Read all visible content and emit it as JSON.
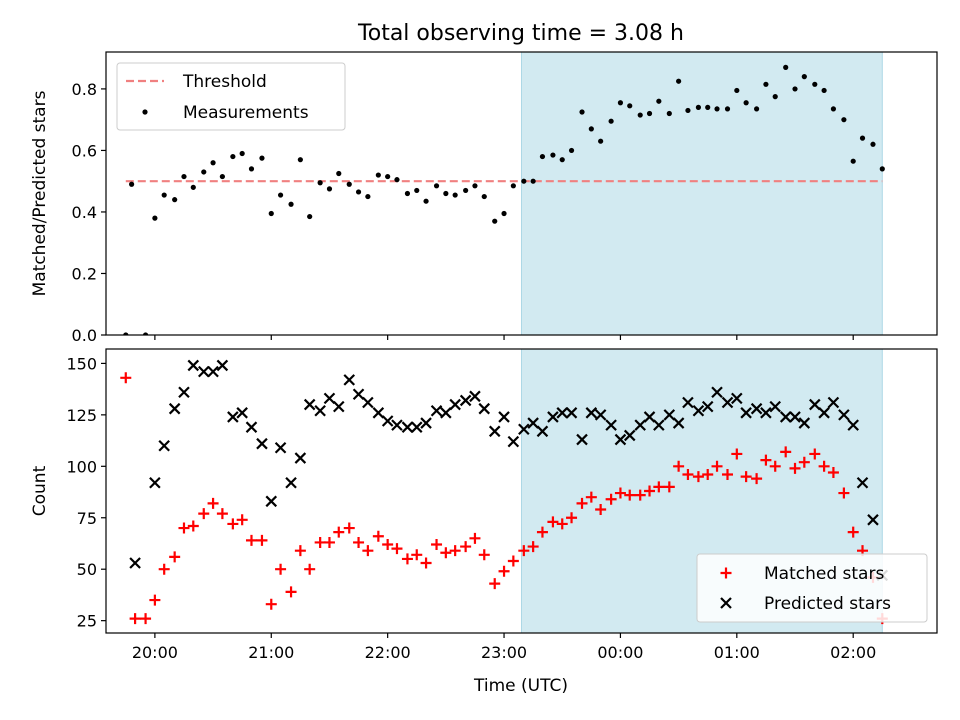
{
  "figure": {
    "title": "Total observing time = 3.08 h",
    "xlabel": "Time (UTC)",
    "shade_color": "#add8e6"
  },
  "chart_data": [
    {
      "type": "scatter",
      "title": "Total observing time = 3.08 h",
      "ylabel": "Matched/Predicted stars",
      "xlabel": "",
      "x_unit": "hours after 19:00 UTC (tick labels shown as clock times)",
      "xlim": [
        19.58,
        26.72
      ],
      "ylim": [
        0,
        0.92
      ],
      "yticks": [
        0.0,
        0.2,
        0.4,
        0.6,
        0.8
      ],
      "ytick_labels": [
        "0.0",
        "0.2",
        "0.4",
        "0.6",
        "0.8"
      ],
      "shaded_x": [
        23.15,
        26.25
      ],
      "threshold": {
        "name": "Threshold",
        "y": 0.5,
        "x_range": [
          19.75,
          26.25
        ],
        "color": "#f08080"
      },
      "legend": {
        "placement": "upper left",
        "entries": [
          "Threshold",
          "Measurements"
        ]
      },
      "series": [
        {
          "name": "Measurements",
          "color": "#000000",
          "marker": "dot",
          "points": [
            [
              19.75,
              0.0
            ],
            [
              19.8,
              0.49
            ],
            [
              19.92,
              0.0
            ],
            [
              20.0,
              0.38
            ],
            [
              20.08,
              0.455
            ],
            [
              20.17,
              0.44
            ],
            [
              20.25,
              0.515
            ],
            [
              20.33,
              0.48
            ],
            [
              20.42,
              0.53
            ],
            [
              20.5,
              0.56
            ],
            [
              20.58,
              0.515
            ],
            [
              20.67,
              0.58
            ],
            [
              20.75,
              0.59
            ],
            [
              20.83,
              0.54
            ],
            [
              20.92,
              0.575
            ],
            [
              21.0,
              0.395
            ],
            [
              21.08,
              0.455
            ],
            [
              21.17,
              0.425
            ],
            [
              21.25,
              0.57
            ],
            [
              21.33,
              0.385
            ],
            [
              21.42,
              0.495
            ],
            [
              21.5,
              0.475
            ],
            [
              21.58,
              0.525
            ],
            [
              21.67,
              0.49
            ],
            [
              21.75,
              0.465
            ],
            [
              21.83,
              0.45
            ],
            [
              21.92,
              0.52
            ],
            [
              22.0,
              0.515
            ],
            [
              22.08,
              0.505
            ],
            [
              22.17,
              0.46
            ],
            [
              22.25,
              0.47
            ],
            [
              22.33,
              0.435
            ],
            [
              22.42,
              0.485
            ],
            [
              22.5,
              0.46
            ],
            [
              22.58,
              0.455
            ],
            [
              22.67,
              0.47
            ],
            [
              22.75,
              0.485
            ],
            [
              22.83,
              0.45
            ],
            [
              22.92,
              0.37
            ],
            [
              23.0,
              0.395
            ],
            [
              23.08,
              0.485
            ],
            [
              23.17,
              0.5
            ],
            [
              23.25,
              0.5
            ],
            [
              23.33,
              0.58
            ],
            [
              23.42,
              0.585
            ],
            [
              23.5,
              0.57
            ],
            [
              23.58,
              0.6
            ],
            [
              23.67,
              0.725
            ],
            [
              23.75,
              0.67
            ],
            [
              23.83,
              0.63
            ],
            [
              23.92,
              0.695
            ],
            [
              24.0,
              0.755
            ],
            [
              24.08,
              0.745
            ],
            [
              24.17,
              0.715
            ],
            [
              24.25,
              0.72
            ],
            [
              24.33,
              0.76
            ],
            [
              24.42,
              0.72
            ],
            [
              24.5,
              0.825
            ],
            [
              24.58,
              0.73
            ],
            [
              24.67,
              0.74
            ],
            [
              24.75,
              0.74
            ],
            [
              24.83,
              0.735
            ],
            [
              24.92,
              0.735
            ],
            [
              25.0,
              0.795
            ],
            [
              25.08,
              0.755
            ],
            [
              25.17,
              0.735
            ],
            [
              25.25,
              0.815
            ],
            [
              25.33,
              0.775
            ],
            [
              25.42,
              0.87
            ],
            [
              25.5,
              0.8
            ],
            [
              25.58,
              0.84
            ],
            [
              25.67,
              0.815
            ],
            [
              25.75,
              0.795
            ],
            [
              25.83,
              0.735
            ],
            [
              25.92,
              0.7
            ],
            [
              26.0,
              0.565
            ],
            [
              26.08,
              0.64
            ],
            [
              26.17,
              0.62
            ],
            [
              26.25,
              0.54
            ]
          ]
        }
      ]
    },
    {
      "type": "scatter",
      "title": "",
      "ylabel": "Count",
      "xlabel": "Time (UTC)",
      "x_unit": "hours after 19:00 UTC (tick labels shown as clock times)",
      "xlim": [
        19.58,
        26.72
      ],
      "ylim": [
        19,
        157
      ],
      "xticks": [
        20,
        21,
        22,
        23,
        24,
        25,
        26
      ],
      "xtick_labels": [
        "20:00",
        "21:00",
        "22:00",
        "23:00",
        "00:00",
        "01:00",
        "02:00"
      ],
      "yticks": [
        25,
        50,
        75,
        100,
        125,
        150
      ],
      "ytick_labels": [
        "25",
        "50",
        "75",
        "100",
        "125",
        "150"
      ],
      "shaded_x": [
        23.15,
        26.25
      ],
      "legend": {
        "placement": "lower right",
        "entries": [
          "Matched stars",
          "Predicted stars"
        ]
      },
      "series": [
        {
          "name": "Matched stars",
          "color": "#ff0000",
          "marker": "plus",
          "points": [
            [
              19.75,
              143
            ],
            [
              19.83,
              26
            ],
            [
              19.92,
              26
            ],
            [
              20.0,
              35
            ],
            [
              20.08,
              50
            ],
            [
              20.17,
              56
            ],
            [
              20.25,
              70
            ],
            [
              20.33,
              71
            ],
            [
              20.42,
              77
            ],
            [
              20.5,
              82
            ],
            [
              20.58,
              77
            ],
            [
              20.67,
              72
            ],
            [
              20.75,
              74
            ],
            [
              20.83,
              64
            ],
            [
              20.92,
              64
            ],
            [
              21.0,
              33
            ],
            [
              21.08,
              50
            ],
            [
              21.17,
              39
            ],
            [
              21.25,
              59
            ],
            [
              21.33,
              50
            ],
            [
              21.42,
              63
            ],
            [
              21.5,
              63
            ],
            [
              21.58,
              68
            ],
            [
              21.67,
              70
            ],
            [
              21.75,
              63
            ],
            [
              21.83,
              59
            ],
            [
              21.92,
              66
            ],
            [
              22.0,
              62
            ],
            [
              22.08,
              60
            ],
            [
              22.17,
              55
            ],
            [
              22.25,
              57
            ],
            [
              22.33,
              53
            ],
            [
              22.42,
              62
            ],
            [
              22.5,
              58
            ],
            [
              22.58,
              59
            ],
            [
              22.67,
              61
            ],
            [
              22.75,
              65
            ],
            [
              22.83,
              57
            ],
            [
              22.92,
              43
            ],
            [
              23.0,
              49
            ],
            [
              23.08,
              54
            ],
            [
              23.17,
              59
            ],
            [
              23.25,
              61
            ],
            [
              23.33,
              68
            ],
            [
              23.42,
              73
            ],
            [
              23.5,
              72
            ],
            [
              23.58,
              75
            ],
            [
              23.67,
              82
            ],
            [
              23.75,
              85
            ],
            [
              23.83,
              79
            ],
            [
              23.92,
              84
            ],
            [
              24.0,
              87
            ],
            [
              24.08,
              86
            ],
            [
              24.17,
              86
            ],
            [
              24.25,
              88
            ],
            [
              24.33,
              90
            ],
            [
              24.42,
              90
            ],
            [
              24.5,
              100
            ],
            [
              24.58,
              96
            ],
            [
              24.67,
              95
            ],
            [
              24.75,
              96
            ],
            [
              24.83,
              100
            ],
            [
              24.92,
              96
            ],
            [
              25.0,
              106
            ],
            [
              25.08,
              95
            ],
            [
              25.17,
              94
            ],
            [
              25.25,
              103
            ],
            [
              25.33,
              100
            ],
            [
              25.42,
              107
            ],
            [
              25.5,
              99
            ],
            [
              25.58,
              102
            ],
            [
              25.67,
              106
            ],
            [
              25.75,
              100
            ],
            [
              25.83,
              97
            ],
            [
              25.92,
              87
            ],
            [
              26.0,
              68
            ],
            [
              26.08,
              59
            ],
            [
              26.17,
              46
            ],
            [
              26.25,
              26
            ]
          ]
        },
        {
          "name": "Predicted stars",
          "color": "#000000",
          "marker": "x",
          "points": [
            [
              19.83,
              53
            ],
            [
              20.0,
              92
            ],
            [
              20.08,
              110
            ],
            [
              20.17,
              128
            ],
            [
              20.25,
              136
            ],
            [
              20.33,
              149
            ],
            [
              20.42,
              146
            ],
            [
              20.5,
              146
            ],
            [
              20.58,
              149
            ],
            [
              20.67,
              124
            ],
            [
              20.75,
              126
            ],
            [
              20.83,
              119
            ],
            [
              20.92,
              111
            ],
            [
              21.0,
              83
            ],
            [
              21.08,
              109
            ],
            [
              21.17,
              92
            ],
            [
              21.25,
              104
            ],
            [
              21.33,
              130
            ],
            [
              21.42,
              127
            ],
            [
              21.5,
              133
            ],
            [
              21.58,
              129
            ],
            [
              21.67,
              142
            ],
            [
              21.75,
              135
            ],
            [
              21.83,
              131
            ],
            [
              21.92,
              126
            ],
            [
              22.0,
              122
            ],
            [
              22.08,
              120
            ],
            [
              22.17,
              119
            ],
            [
              22.25,
              119
            ],
            [
              22.33,
              121
            ],
            [
              22.42,
              127
            ],
            [
              22.5,
              126
            ],
            [
              22.58,
              130
            ],
            [
              22.67,
              132
            ],
            [
              22.75,
              134
            ],
            [
              22.83,
              128
            ],
            [
              22.92,
              117
            ],
            [
              23.0,
              124
            ],
            [
              23.08,
              112
            ],
            [
              23.17,
              118
            ],
            [
              23.25,
              121
            ],
            [
              23.33,
              117
            ],
            [
              23.42,
              124
            ],
            [
              23.5,
              126
            ],
            [
              23.58,
              126
            ],
            [
              23.67,
              113
            ],
            [
              23.75,
              126
            ],
            [
              23.83,
              125
            ],
            [
              23.92,
              120
            ],
            [
              24.0,
              113
            ],
            [
              24.08,
              115
            ],
            [
              24.17,
              120
            ],
            [
              24.25,
              124
            ],
            [
              24.33,
              120
            ],
            [
              24.42,
              125
            ],
            [
              24.5,
              121
            ],
            [
              24.58,
              131
            ],
            [
              24.67,
              127
            ],
            [
              24.75,
              129
            ],
            [
              24.83,
              136
            ],
            [
              24.92,
              131
            ],
            [
              25.0,
              133
            ],
            [
              25.08,
              126
            ],
            [
              25.17,
              128
            ],
            [
              25.25,
              126
            ],
            [
              25.33,
              129
            ],
            [
              25.42,
              124
            ],
            [
              25.5,
              124
            ],
            [
              25.58,
              121
            ],
            [
              25.67,
              130
            ],
            [
              25.75,
              126
            ],
            [
              25.83,
              131
            ],
            [
              25.92,
              125
            ],
            [
              26.0,
              120
            ],
            [
              26.08,
              92
            ],
            [
              26.17,
              74
            ],
            [
              26.25,
              47
            ]
          ]
        }
      ]
    }
  ]
}
